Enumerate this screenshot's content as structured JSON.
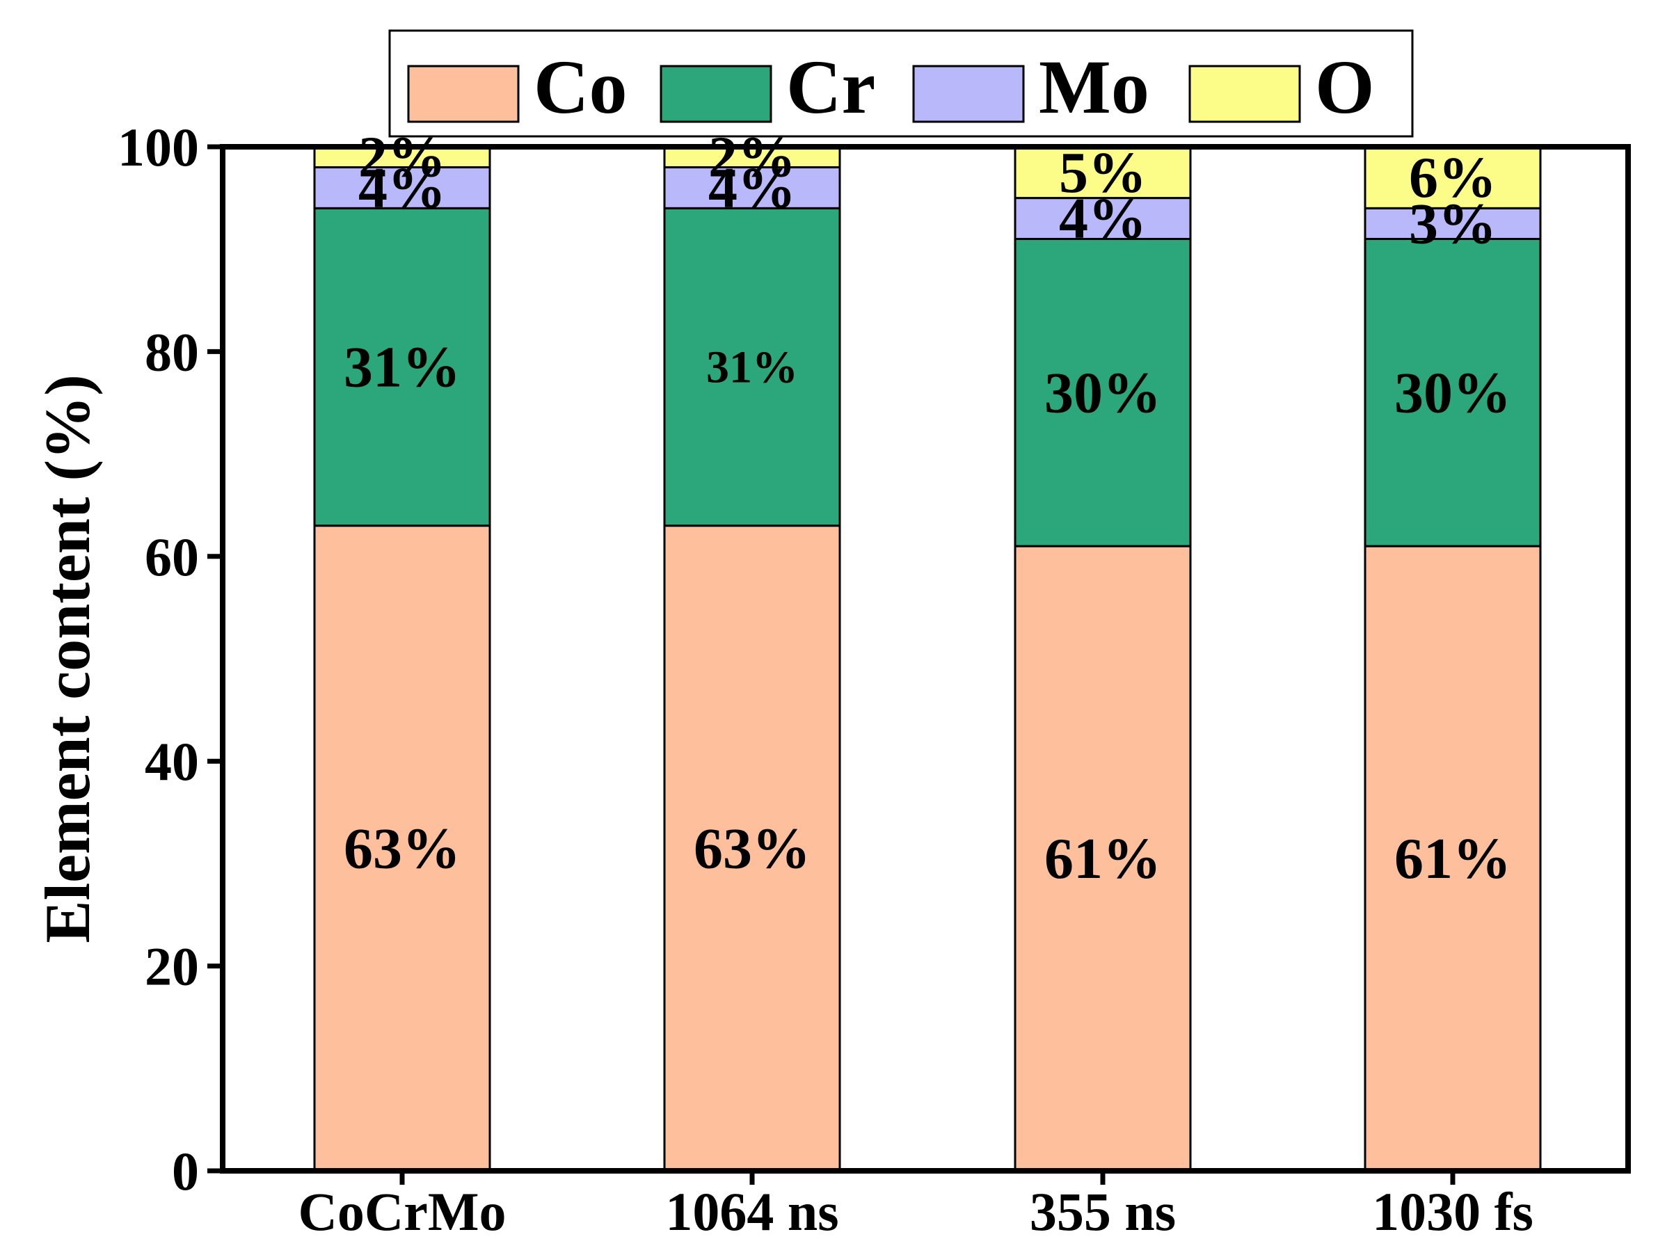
{
  "chart_data": {
    "type": "bar",
    "stacked": true,
    "categories": [
      "CoCrMo",
      "1064 ns",
      "355 ns",
      "1030 fs"
    ],
    "series": [
      {
        "name": "Co",
        "color": "#FDBF9C",
        "values": [
          63,
          63,
          61,
          61
        ],
        "labels": [
          "63%",
          "63%",
          "61%",
          "61%"
        ]
      },
      {
        "name": "Cr",
        "color": "#2BA77B",
        "values": [
          31,
          31,
          30,
          30
        ],
        "labels": [
          "31%",
          "31%",
          "30%",
          "30%"
        ]
      },
      {
        "name": "Mo",
        "color": "#B8B8FA",
        "values": [
          4,
          4,
          4,
          3
        ],
        "labels": [
          "4%",
          "4%",
          "4%",
          "3%"
        ]
      },
      {
        "name": "O",
        "color": "#FCFC88",
        "values": [
          2,
          2,
          5,
          6
        ],
        "labels": [
          "2%",
          "2%",
          "5%",
          "6%"
        ]
      }
    ],
    "xlabel": "",
    "ylabel": "Element content (%)",
    "ylim": [
      0,
      100
    ],
    "yticks": [
      0,
      20,
      40,
      60,
      80,
      100
    ],
    "grid": false,
    "legend": "top"
  }
}
